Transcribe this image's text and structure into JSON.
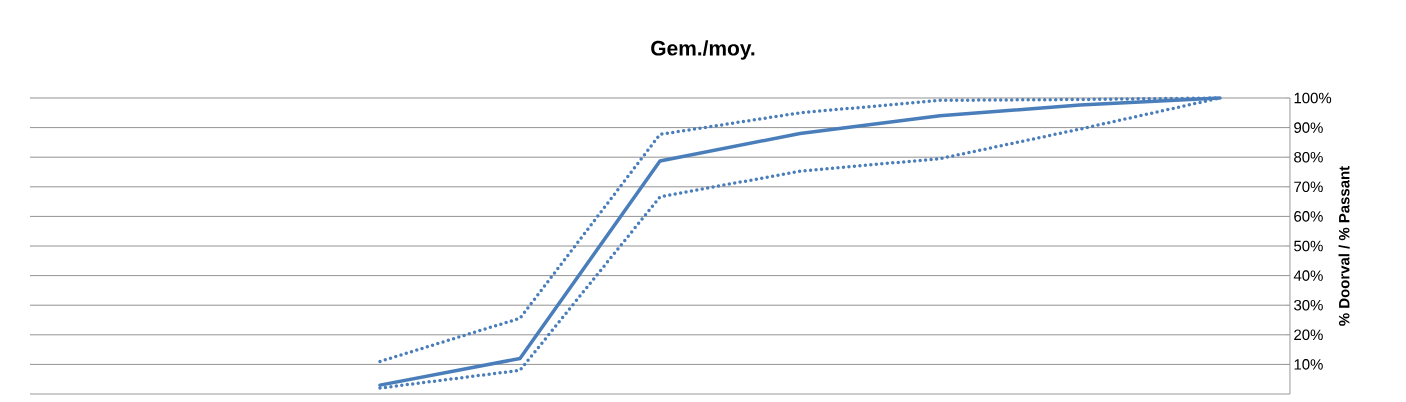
{
  "chart_data": {
    "type": "line",
    "title": "Gem./moy.",
    "ylabel": "% Doorval / % Passant",
    "categories": [
      null,
      null,
      null,
      null,
      null,
      null,
      null,
      null,
      null
    ],
    "series": [
      {
        "color": "#4a7ebb",
        "line_style": "solid",
        "values": [
          null,
          null,
          3,
          12,
          78.7,
          88,
          94,
          97.6,
          100
        ]
      },
      {
        "color": "#4a7ebb",
        "line_style": "dotted",
        "values": [
          null,
          null,
          11,
          25.6,
          87.7,
          95,
          99.2,
          99.5,
          100
        ]
      },
      {
        "color": "#4a7ebb",
        "line_style": "dotted",
        "values": [
          null,
          null,
          2,
          8,
          66.6,
          75.3,
          79.5,
          89.5,
          100
        ]
      }
    ],
    "ylim": [
      0,
      100
    ],
    "yticks": [
      {
        "value": 10,
        "label": "10%"
      },
      {
        "value": 20,
        "label": "20%"
      },
      {
        "value": 30,
        "label": "30%"
      },
      {
        "value": 40,
        "label": "40%"
      },
      {
        "value": 50,
        "label": "50%"
      },
      {
        "value": 60,
        "label": "60%"
      },
      {
        "value": 70,
        "label": "70%"
      },
      {
        "value": 80,
        "label": "80%"
      },
      {
        "value": 90,
        "label": "90%"
      },
      {
        "value": 100,
        "label": "100%"
      }
    ],
    "grid": "y",
    "marker": "none"
  }
}
